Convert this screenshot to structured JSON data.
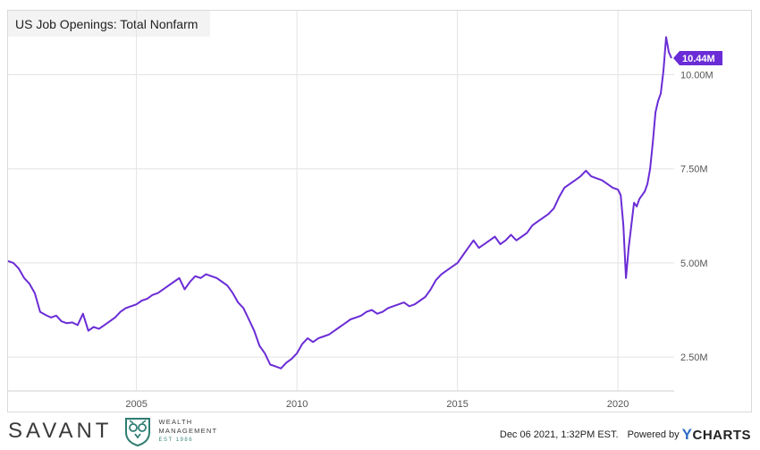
{
  "chart_data": {
    "type": "line",
    "title": "US Job Openings: Total Nonfarm",
    "xlabel": "",
    "ylabel": "",
    "x_range": [
      "2001-01",
      "2021-10"
    ],
    "ylim": [
      1600000,
      11700000
    ],
    "y_ticks": [
      {
        "value": 2500000,
        "label": "2.50M"
      },
      {
        "value": 5000000,
        "label": "5.00M"
      },
      {
        "value": 7500000,
        "label": "7.50M"
      },
      {
        "value": 10000000,
        "label": "10.00M"
      }
    ],
    "x_ticks": [
      {
        "value": "2005-01",
        "label": "2005"
      },
      {
        "value": "2010-01",
        "label": "2010"
      },
      {
        "value": "2015-01",
        "label": "2015"
      },
      {
        "value": "2020-01",
        "label": "2020"
      }
    ],
    "grid": true,
    "series": [
      {
        "color": "#6a2cd6",
        "points": [
          [
            "2001-01",
            5.05
          ],
          [
            "2001-03",
            5.0
          ],
          [
            "2001-05",
            4.85
          ],
          [
            "2001-07",
            4.6
          ],
          [
            "2001-09",
            4.45
          ],
          [
            "2001-11",
            4.2
          ],
          [
            "2002-01",
            3.7
          ],
          [
            "2002-03",
            3.62
          ],
          [
            "2002-05",
            3.55
          ],
          [
            "2002-07",
            3.6
          ],
          [
            "2002-09",
            3.45
          ],
          [
            "2002-11",
            3.4
          ],
          [
            "2003-01",
            3.42
          ],
          [
            "2003-03",
            3.35
          ],
          [
            "2003-05",
            3.65
          ],
          [
            "2003-07",
            3.2
          ],
          [
            "2003-09",
            3.3
          ],
          [
            "2003-11",
            3.25
          ],
          [
            "2004-01",
            3.35
          ],
          [
            "2004-03",
            3.45
          ],
          [
            "2004-05",
            3.55
          ],
          [
            "2004-07",
            3.7
          ],
          [
            "2004-09",
            3.8
          ],
          [
            "2004-11",
            3.85
          ],
          [
            "2005-01",
            3.9
          ],
          [
            "2005-03",
            4.0
          ],
          [
            "2005-05",
            4.05
          ],
          [
            "2005-07",
            4.15
          ],
          [
            "2005-09",
            4.2
          ],
          [
            "2005-11",
            4.3
          ],
          [
            "2006-01",
            4.4
          ],
          [
            "2006-03",
            4.5
          ],
          [
            "2006-05",
            4.6
          ],
          [
            "2006-07",
            4.3
          ],
          [
            "2006-09",
            4.5
          ],
          [
            "2006-11",
            4.65
          ],
          [
            "2007-01",
            4.6
          ],
          [
            "2007-03",
            4.7
          ],
          [
            "2007-05",
            4.65
          ],
          [
            "2007-07",
            4.6
          ],
          [
            "2007-09",
            4.5
          ],
          [
            "2007-11",
            4.4
          ],
          [
            "2008-01",
            4.2
          ],
          [
            "2008-03",
            3.95
          ],
          [
            "2008-05",
            3.8
          ],
          [
            "2008-07",
            3.5
          ],
          [
            "2008-09",
            3.2
          ],
          [
            "2008-11",
            2.8
          ],
          [
            "2009-01",
            2.6
          ],
          [
            "2009-03",
            2.3
          ],
          [
            "2009-05",
            2.25
          ],
          [
            "2009-07",
            2.2
          ],
          [
            "2009-09",
            2.35
          ],
          [
            "2009-11",
            2.45
          ],
          [
            "2010-01",
            2.6
          ],
          [
            "2010-03",
            2.85
          ],
          [
            "2010-05",
            3.0
          ],
          [
            "2010-07",
            2.9
          ],
          [
            "2010-09",
            3.0
          ],
          [
            "2010-11",
            3.05
          ],
          [
            "2011-01",
            3.1
          ],
          [
            "2011-03",
            3.2
          ],
          [
            "2011-05",
            3.3
          ],
          [
            "2011-07",
            3.4
          ],
          [
            "2011-09",
            3.5
          ],
          [
            "2011-11",
            3.55
          ],
          [
            "2012-01",
            3.6
          ],
          [
            "2012-03",
            3.7
          ],
          [
            "2012-05",
            3.75
          ],
          [
            "2012-07",
            3.65
          ],
          [
            "2012-09",
            3.7
          ],
          [
            "2012-11",
            3.8
          ],
          [
            "2013-01",
            3.85
          ],
          [
            "2013-03",
            3.9
          ],
          [
            "2013-05",
            3.95
          ],
          [
            "2013-07",
            3.85
          ],
          [
            "2013-09",
            3.9
          ],
          [
            "2013-11",
            4.0
          ],
          [
            "2014-01",
            4.1
          ],
          [
            "2014-03",
            4.3
          ],
          [
            "2014-05",
            4.55
          ],
          [
            "2014-07",
            4.7
          ],
          [
            "2014-09",
            4.8
          ],
          [
            "2014-11",
            4.9
          ],
          [
            "2015-01",
            5.0
          ],
          [
            "2015-03",
            5.2
          ],
          [
            "2015-05",
            5.4
          ],
          [
            "2015-07",
            5.6
          ],
          [
            "2015-09",
            5.4
          ],
          [
            "2015-11",
            5.5
          ],
          [
            "2016-01",
            5.6
          ],
          [
            "2016-03",
            5.7
          ],
          [
            "2016-05",
            5.5
          ],
          [
            "2016-07",
            5.6
          ],
          [
            "2016-09",
            5.75
          ],
          [
            "2016-11",
            5.6
          ],
          [
            "2017-01",
            5.7
          ],
          [
            "2017-03",
            5.8
          ],
          [
            "2017-05",
            6.0
          ],
          [
            "2017-07",
            6.1
          ],
          [
            "2017-09",
            6.2
          ],
          [
            "2017-11",
            6.3
          ],
          [
            "2018-01",
            6.45
          ],
          [
            "2018-03",
            6.75
          ],
          [
            "2018-05",
            7.0
          ],
          [
            "2018-07",
            7.1
          ],
          [
            "2018-09",
            7.2
          ],
          [
            "2018-11",
            7.3
          ],
          [
            "2019-01",
            7.45
          ],
          [
            "2019-03",
            7.3
          ],
          [
            "2019-05",
            7.25
          ],
          [
            "2019-07",
            7.2
          ],
          [
            "2019-09",
            7.1
          ],
          [
            "2019-11",
            7.0
          ],
          [
            "2020-01",
            6.95
          ],
          [
            "2020-02",
            6.8
          ],
          [
            "2020-03",
            6.0
          ],
          [
            "2020-04",
            4.6
          ],
          [
            "2020-05",
            5.4
          ],
          [
            "2020-06",
            6.0
          ],
          [
            "2020-07",
            6.6
          ],
          [
            "2020-08",
            6.5
          ],
          [
            "2020-09",
            6.7
          ],
          [
            "2020-10",
            6.8
          ],
          [
            "2020-11",
            6.9
          ],
          [
            "2020-12",
            7.1
          ],
          [
            "2021-01",
            7.5
          ],
          [
            "2021-02",
            8.2
          ],
          [
            "2021-03",
            9.0
          ],
          [
            "2021-04",
            9.3
          ],
          [
            "2021-05",
            9.5
          ],
          [
            "2021-06",
            10.1
          ],
          [
            "2021-07",
            11.0
          ],
          [
            "2021-08",
            10.6
          ],
          [
            "2021-09",
            10.44
          ]
        ]
      }
    ],
    "last_value_label": "10.44M"
  },
  "footer": {
    "brand_name": "SAVANT",
    "brand_sub_line1": "WEALTH",
    "brand_sub_line2": "MANAGEMENT",
    "brand_est": "EST 1986",
    "timestamp": "Dec 06 2021, 1:32PM EST.",
    "powered_by": "Powered by",
    "ycharts_y": "Y",
    "ycharts_rest": "CHARTS"
  }
}
